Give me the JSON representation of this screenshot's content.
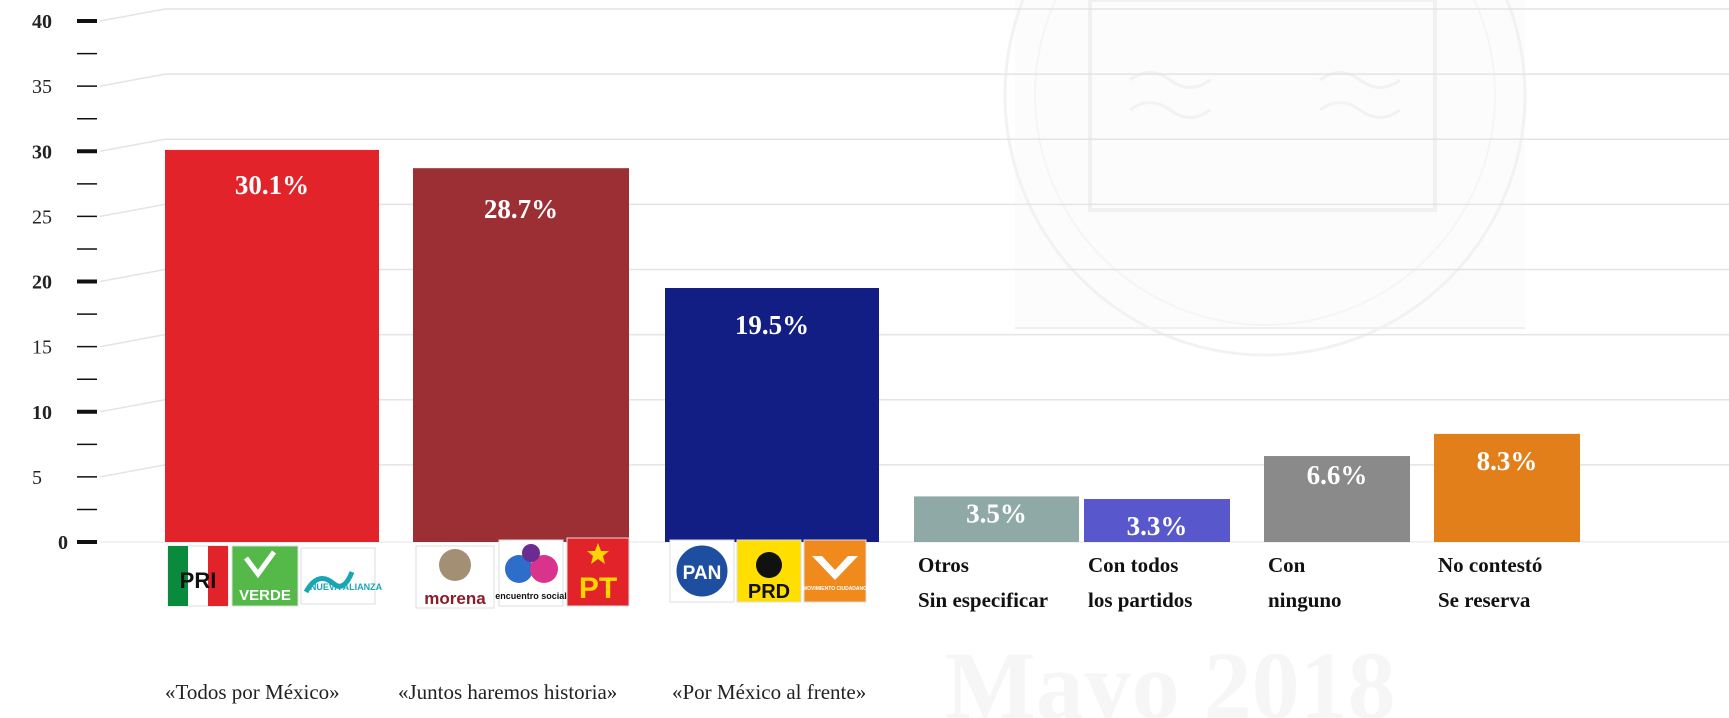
{
  "chart_data": {
    "type": "bar",
    "ylim": [
      0,
      40
    ],
    "y_ticks": [
      "0",
      "5",
      "10",
      "15",
      "20",
      "25",
      "30",
      "35",
      "40"
    ],
    "grid": true,
    "categories": [
      {
        "lines": [],
        "coalition": "«Todos por México»",
        "logos": [
          "PRI",
          "VERDE",
          "NUEVA ALIANZA"
        ]
      },
      {
        "lines": [],
        "coalition": "«Juntos haremos historia»",
        "logos": [
          "morena",
          "encuentro social",
          "PT"
        ]
      },
      {
        "lines": [],
        "coalition": "«Por México al frente»",
        "logos": [
          "PAN",
          "PRD",
          "MOVIMIENTO CIUDADANO"
        ]
      },
      {
        "lines": [
          "Otros",
          "Sin especificar"
        ],
        "coalition": "",
        "logos": []
      },
      {
        "lines": [
          "Con todos",
          "los partidos"
        ],
        "coalition": "",
        "logos": []
      },
      {
        "lines": [
          "Con",
          "ninguno"
        ],
        "coalition": "",
        "logos": []
      },
      {
        "lines": [
          "No contestó",
          "Se reserva"
        ],
        "coalition": "",
        "logos": []
      }
    ],
    "values": [
      30.1,
      28.7,
      19.5,
      3.5,
      3.3,
      6.6,
      8.3
    ],
    "value_labels": [
      "30.1%",
      "28.7%",
      "19.5%",
      "3.5%",
      "3.3%",
      "6.6%",
      "8.3%"
    ],
    "colors": [
      "#e2232a",
      "#9b2f33",
      "#121e84",
      "#8fa9a6",
      "#5858cc",
      "#8a8a8a",
      "#e27f1b"
    ]
  },
  "watermark": {
    "text": "Mayo 2018"
  }
}
